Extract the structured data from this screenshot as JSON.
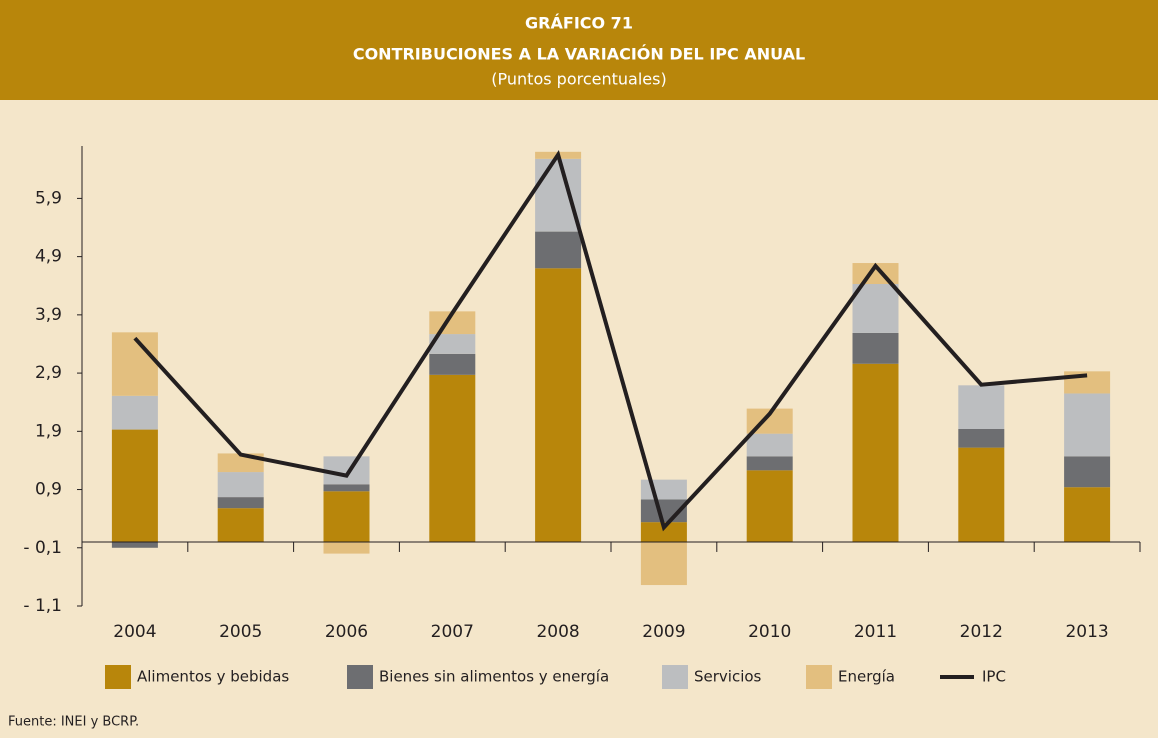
{
  "chart_data": {
    "type": "bar",
    "title": "GRÁFICO 71",
    "subtitle": "CONTRIBUCIONES A LA VARIACIÓN DEL IPC ANUAL",
    "unit": "(Puntos porcentuales)",
    "source": "Fuente: INEI y BCRP.",
    "categories": [
      "2004",
      "2005",
      "2006",
      "2007",
      "2008",
      "2009",
      "2010",
      "2011",
      "2012",
      "2013"
    ],
    "series": [
      {
        "name": "Alimentos y bebidas",
        "color": "#b8860b",
        "kind": "bar",
        "values": [
          1.93,
          0.58,
          0.87,
          2.87,
          4.7,
          0.34,
          1.23,
          3.06,
          1.62,
          0.94
        ]
      },
      {
        "name": "Bienes sin alimentos y energía",
        "color": "#6d6e71",
        "kind": "bar",
        "values": [
          -0.1,
          0.19,
          0.12,
          0.36,
          0.63,
          0.39,
          0.24,
          0.53,
          0.32,
          0.53
        ]
      },
      {
        "name": "Servicios",
        "color": "#bcbec0",
        "kind": "bar",
        "values": [
          0.58,
          0.43,
          0.48,
          0.34,
          1.25,
          0.34,
          0.39,
          0.84,
          0.75,
          1.08
        ]
      },
      {
        "name": "Energía",
        "color": "#e3bf7f",
        "kind": "bar",
        "values": [
          1.09,
          0.32,
          -0.2,
          0.39,
          0.12,
          -0.74,
          0.43,
          0.36,
          0,
          0.38
        ]
      },
      {
        "name": "IPC",
        "color": "#231f20",
        "kind": "line",
        "values": [
          3.5,
          1.5,
          1.14,
          3.93,
          6.65,
          0.25,
          2.2,
          4.74,
          2.7,
          2.86
        ]
      }
    ],
    "ylim": [
      -1.1,
      6.8
    ],
    "yticks": [
      {
        "value": -1.1,
        "label": "- 1,1"
      },
      {
        "value": -0.1,
        "label": "- 0,1"
      },
      {
        "value": 0.9,
        "label": "0,9"
      },
      {
        "value": 1.9,
        "label": "1,9"
      },
      {
        "value": 2.9,
        "label": "2,9"
      },
      {
        "value": 3.9,
        "label": "3,9"
      },
      {
        "value": 4.9,
        "label": "4,9"
      },
      {
        "value": 5.9,
        "label": "5,9"
      }
    ],
    "grid": false
  }
}
